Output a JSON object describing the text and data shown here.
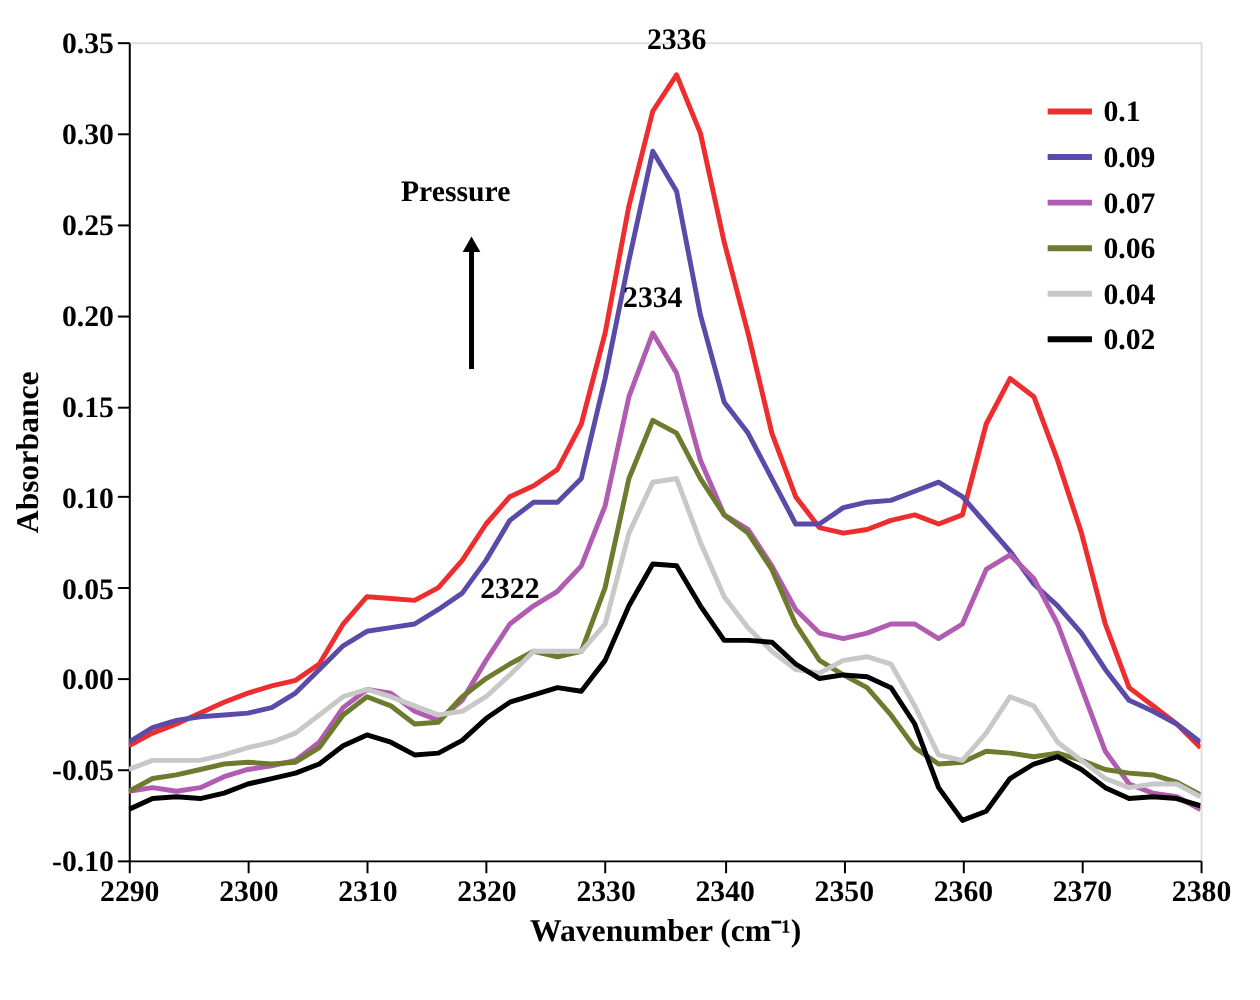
{
  "chart_data": {
    "type": "line",
    "xlabel": "Wavenumber (cm⁻¹)",
    "ylabel": "Absorbance",
    "x": [
      2290,
      2292,
      2294,
      2296,
      2298,
      2300,
      2302,
      2304,
      2306,
      2308,
      2310,
      2312,
      2314,
      2316,
      2318,
      2320,
      2322,
      2324,
      2326,
      2328,
      2330,
      2332,
      2334,
      2336,
      2338,
      2340,
      2342,
      2344,
      2346,
      2348,
      2350,
      2352,
      2354,
      2356,
      2358,
      2360,
      2362,
      2364,
      2366,
      2368,
      2370,
      2372,
      2374,
      2376,
      2378,
      2380
    ],
    "series": [
      {
        "name": "0.1",
        "color": "#ee2e2e",
        "values": [
          -0.037,
          -0.03,
          -0.025,
          -0.019,
          -0.013,
          -0.008,
          -0.004,
          -0.001,
          0.008,
          0.03,
          0.045,
          0.044,
          0.043,
          0.05,
          0.065,
          0.085,
          0.1,
          0.106,
          0.115,
          0.14,
          0.19,
          0.26,
          0.312,
          0.332,
          0.3,
          0.24,
          0.19,
          0.135,
          0.1,
          0.083,
          0.08,
          0.082,
          0.087,
          0.09,
          0.085,
          0.09,
          0.14,
          0.165,
          0.155,
          0.12,
          0.08,
          0.03,
          -0.005,
          -0.015,
          -0.025,
          -0.038
        ]
      },
      {
        "name": "0.09",
        "color": "#5b4aa8",
        "values": [
          -0.035,
          -0.027,
          -0.023,
          -0.021,
          -0.02,
          -0.019,
          -0.016,
          -0.008,
          0.005,
          0.018,
          0.026,
          0.028,
          0.03,
          0.038,
          0.047,
          0.065,
          0.087,
          0.097,
          0.097,
          0.11,
          0.165,
          0.23,
          0.29,
          0.268,
          0.2,
          0.152,
          0.135,
          0.11,
          0.085,
          0.085,
          0.094,
          0.097,
          0.098,
          0.103,
          0.108,
          0.1,
          0.085,
          0.07,
          0.052,
          0.04,
          0.025,
          0.005,
          -0.012,
          -0.018,
          -0.025,
          -0.035
        ]
      },
      {
        "name": "0.07",
        "color": "#b05cb0",
        "values": [
          -0.062,
          -0.06,
          -0.062,
          -0.06,
          -0.054,
          -0.05,
          -0.048,
          -0.045,
          -0.035,
          -0.016,
          -0.006,
          -0.008,
          -0.018,
          -0.023,
          -0.012,
          0.01,
          0.03,
          0.04,
          0.048,
          0.062,
          0.095,
          0.155,
          0.19,
          0.168,
          0.12,
          0.09,
          0.082,
          0.062,
          0.038,
          0.025,
          0.022,
          0.025,
          0.03,
          0.03,
          0.022,
          0.03,
          0.06,
          0.068,
          0.055,
          0.03,
          -0.005,
          -0.04,
          -0.058,
          -0.063,
          -0.065,
          -0.072
        ]
      },
      {
        "name": "0.06",
        "color": "#6e7a2e",
        "values": [
          -0.062,
          -0.055,
          -0.053,
          -0.05,
          -0.047,
          -0.046,
          -0.047,
          -0.046,
          -0.038,
          -0.02,
          -0.01,
          -0.015,
          -0.025,
          -0.024,
          -0.01,
          0.0,
          0.008,
          0.015,
          0.012,
          0.015,
          0.05,
          0.11,
          0.142,
          0.135,
          0.11,
          0.09,
          0.08,
          0.06,
          0.03,
          0.01,
          0.002,
          -0.005,
          -0.02,
          -0.038,
          -0.047,
          -0.046,
          -0.04,
          -0.041,
          -0.043,
          -0.041,
          -0.045,
          -0.05,
          -0.052,
          -0.053,
          -0.057,
          -0.064
        ]
      },
      {
        "name": "0.04",
        "color": "#c8c8c8",
        "values": [
          -0.05,
          -0.045,
          -0.045,
          -0.045,
          -0.042,
          -0.038,
          -0.035,
          -0.03,
          -0.02,
          -0.01,
          -0.006,
          -0.01,
          -0.015,
          -0.02,
          -0.018,
          -0.01,
          0.002,
          0.015,
          0.015,
          0.015,
          0.03,
          0.08,
          0.108,
          0.11,
          0.075,
          0.045,
          0.028,
          0.015,
          0.005,
          0.003,
          0.01,
          0.012,
          0.008,
          -0.015,
          -0.042,
          -0.045,
          -0.03,
          -0.01,
          -0.015,
          -0.035,
          -0.045,
          -0.055,
          -0.06,
          -0.058,
          -0.058,
          -0.065
        ]
      },
      {
        "name": "0.02",
        "color": "#000000",
        "values": [
          -0.072,
          -0.066,
          -0.065,
          -0.066,
          -0.063,
          -0.058,
          -0.055,
          -0.052,
          -0.047,
          -0.037,
          -0.031,
          -0.035,
          -0.042,
          -0.041,
          -0.034,
          -0.022,
          -0.013,
          -0.009,
          -0.005,
          -0.007,
          0.01,
          0.04,
          0.063,
          0.062,
          0.04,
          0.021,
          0.021,
          0.02,
          0.008,
          0.0,
          0.002,
          0.001,
          -0.005,
          -0.025,
          -0.06,
          -0.078,
          -0.073,
          -0.055,
          -0.047,
          -0.043,
          -0.05,
          -0.06,
          -0.066,
          -0.065,
          -0.066,
          -0.07
        ]
      }
    ],
    "xlim": [
      2290,
      2380
    ],
    "xticks": [
      2290,
      2300,
      2310,
      2320,
      2330,
      2340,
      2350,
      2360,
      2370,
      2380
    ],
    "ylim": [
      -0.1,
      0.35
    ],
    "yticks": [
      {
        "value": -0.1,
        "label": "-0.10"
      },
      {
        "value": -0.05,
        "label": "-0.05"
      },
      {
        "value": 0,
        "label": "0.00"
      },
      {
        "value": 0.05,
        "label": "0.05"
      },
      {
        "value": 0.1,
        "label": "0.10"
      },
      {
        "value": 0.15,
        "label": "0.15"
      },
      {
        "value": 0.2,
        "label": "0.20"
      },
      {
        "value": 0.25,
        "label": "0.25"
      },
      {
        "value": 0.3,
        "label": "0.30"
      },
      {
        "value": 0.35,
        "label": "0.35"
      }
    ],
    "annotations": [
      {
        "text": "2336",
        "x": 2336,
        "y": 0.332
      },
      {
        "text": "2334",
        "x": 2334,
        "y": 0.19
      },
      {
        "text": "2322",
        "x": 2322,
        "y": 0.03
      },
      "Pressure"
    ],
    "grid": false,
    "legend": "top right",
    "marker": "none",
    "line_style": "solid"
  }
}
